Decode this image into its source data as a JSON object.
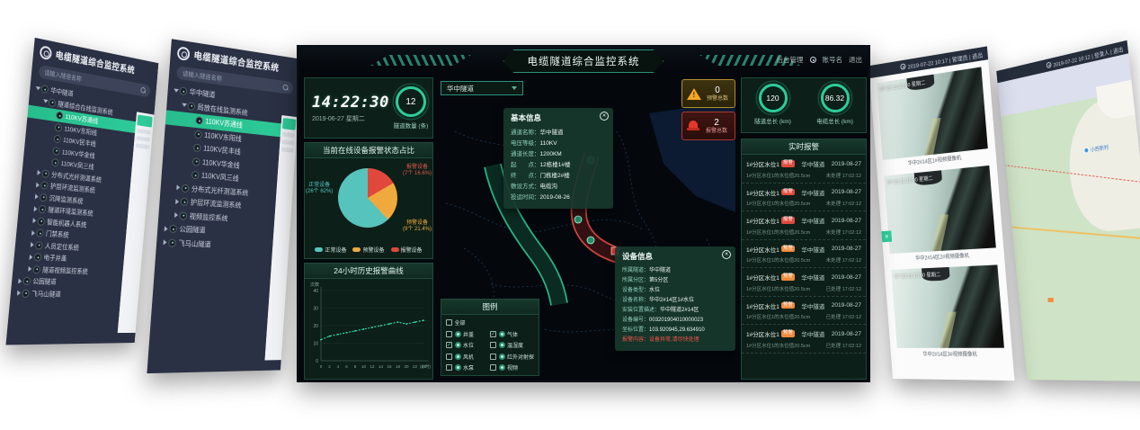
{
  "main": {
    "header": {
      "title": "电缆隧道综合监控系统",
      "link_admin": "后台管理",
      "link_account": "账号名",
      "link_logout": "退出"
    },
    "clock": {
      "time": "14:22:30",
      "date": "2019-06-27 星期二",
      "tunnel_count": "12",
      "tunnel_count_label": "隧道数量 (条)"
    },
    "pie_panel": {
      "title": "当前在线设备报警状态占比",
      "label_normal_name": "正常设备",
      "label_normal_detail": "(26个 62%)",
      "label_warn_name": "预警设备",
      "label_warn_detail": "(9个 21.4%)",
      "label_alarm_name": "报警设备",
      "label_alarm_detail": "(7个 16.6%)"
    },
    "line_panel": {
      "title": "24小时历史报警曲线"
    },
    "map": {
      "dropdown_value": "华中隧道",
      "legend": {
        "title": "图例",
        "items": [
          {
            "label": "全部",
            "checked": false,
            "icon": false,
            "span2": true
          },
          {
            "label": "井盖",
            "checked": false,
            "icon": true
          },
          {
            "label": "气体",
            "checked": true,
            "icon": true
          },
          {
            "label": "水位",
            "checked": true,
            "icon": true
          },
          {
            "label": "温湿度",
            "checked": false,
            "icon": true
          },
          {
            "label": "风机",
            "checked": false,
            "icon": true
          },
          {
            "label": "红外对射探测器",
            "checked": false,
            "icon": true
          },
          {
            "label": "水泵",
            "checked": false,
            "icon": true
          },
          {
            "label": "视频",
            "checked": false,
            "icon": true
          }
        ]
      },
      "basic_info": {
        "title": "基本信息",
        "rows": [
          {
            "label": "通道名称：",
            "value": "华中隧道"
          },
          {
            "label": "电压等级：",
            "value": "110KV"
          },
          {
            "label": "通道长度：",
            "value": "1200KM"
          },
          {
            "label": "起　　点：",
            "value": "12栋楼1#楼"
          },
          {
            "label": "终　　点：",
            "value": "门栋楼2#楼"
          },
          {
            "label": "敷设方式：",
            "value": "电缆沟"
          },
          {
            "label": "投运时间：",
            "value": "2019-08-26"
          }
        ]
      },
      "device_info": {
        "title": "设备信息",
        "rows": [
          {
            "label": "所属隧道：",
            "value": "华中隧道"
          },
          {
            "label": "所属分区：",
            "value": "第5分区"
          },
          {
            "label": "设备类型：",
            "value": "水位"
          },
          {
            "label": "设备名称：",
            "value": "华中2#14区1#水位"
          },
          {
            "label": "安装位置描述：",
            "value": "华中隧道2#14区"
          },
          {
            "label": "设备编号：",
            "value": "003201904010000023"
          },
          {
            "label": "坐标位置：",
            "value": "103.920945,29.634910"
          },
          {
            "label": "报警内容：",
            "value": "设备异常,请尽快处理",
            "alert": true
          }
        ]
      }
    },
    "alarm_summary": {
      "warning_count": "0",
      "warning_label": "预警总数",
      "alarm_count": "2",
      "alarm_label": "报警总数"
    },
    "gauges": [
      {
        "value": "120",
        "label": "隧道总长 (km)"
      },
      {
        "value": "86.32",
        "label": "电缆总长 (km)"
      }
    ],
    "realtime": {
      "title": "实时报警",
      "rows": [
        {
          "name": "1#分区水位1",
          "badge": "报警",
          "type": "alert",
          "tunnel": "华中隧道",
          "date": "2019-08-27",
          "desc": "1#分区水位1的水位值20.5cm",
          "status": "未处理",
          "time": "17:02:12"
        },
        {
          "name": "1#分区水位1",
          "badge": "报警",
          "type": "alert",
          "tunnel": "华中隧道",
          "date": "2019-08-27",
          "desc": "1#分区水位1的水位值20.5cm",
          "status": "未处理",
          "time": "17:02:12"
        },
        {
          "name": "1#分区水位1",
          "badge": "报警",
          "type": "alert",
          "tunnel": "华中隧道",
          "date": "2019-08-27",
          "desc": "1#分区水位1的水位值20.5cm",
          "status": "未处理",
          "time": "17:02:12"
        },
        {
          "name": "1#分区水位1",
          "badge": "预警",
          "type": "warn",
          "tunnel": "华中隧道",
          "date": "2019-08-27",
          "desc": "1#分区水位1的水位值20.5cm",
          "status": "未处理",
          "time": "17:02:12"
        },
        {
          "name": "1#分区水位1",
          "badge": "预警",
          "type": "warn",
          "tunnel": "华中隧道",
          "date": "2019-08-27",
          "desc": "1#分区水位1的水位值20.5cm",
          "status": "已处理",
          "time": "17:02:12"
        },
        {
          "name": "1#分区水位1",
          "badge": "预警",
          "type": "warn",
          "tunnel": "华中隧道",
          "date": "2019-08-27",
          "desc": "1#分区水位1的水位值20.5cm",
          "status": "已处理",
          "time": "17:02:12"
        },
        {
          "name": "1#分区水位1",
          "badge": "预警",
          "type": "warn",
          "tunnel": "华中隧道",
          "date": "2019-08-27",
          "desc": "1#分区水位1的水位值20.5cm",
          "status": "已处理",
          "time": "17:02:12"
        }
      ]
    }
  },
  "left_screen_1": {
    "title": "电缆隧道综合监控系统",
    "search_placeholder": "请输入隧道名称",
    "tree": [
      {
        "label": "华中隧道",
        "level": 0,
        "state": "expanded"
      },
      {
        "label": "隧道综合在线监测系统",
        "level": 1,
        "state": "expanded"
      },
      {
        "label": "110KV苏通线",
        "level": 2,
        "state": "leaf",
        "selected": true
      },
      {
        "label": "110KV东阳线",
        "level": 2,
        "state": "leaf"
      },
      {
        "label": "110KV民丰线",
        "level": 2,
        "state": "leaf"
      },
      {
        "label": "110KV华金线",
        "level": 2,
        "state": "leaf"
      },
      {
        "label": "110KV凤三线",
        "level": 2,
        "state": "leaf"
      },
      {
        "label": "分布式光纤测温系统",
        "level": 1,
        "state": "collapsed"
      },
      {
        "label": "护层环流监测系统",
        "level": 1,
        "state": "collapsed"
      },
      {
        "label": "沉降监测系统",
        "level": 1,
        "state": "collapsed"
      },
      {
        "label": "隧道环境监测系统",
        "level": 1,
        "state": "collapsed"
      },
      {
        "label": "智能机器人系统",
        "level": 1,
        "state": "collapsed"
      },
      {
        "label": "门禁系统",
        "level": 1,
        "state": "collapsed"
      },
      {
        "label": "人员定位系统",
        "level": 1,
        "state": "collapsed"
      },
      {
        "label": "电子井盖",
        "level": 1,
        "state": "collapsed"
      },
      {
        "label": "隧道视频监控系统",
        "level": 1,
        "state": "collapsed"
      },
      {
        "label": "公园隧道",
        "level": 0,
        "state": "collapsed"
      },
      {
        "label": "飞马山隧道",
        "level": 0,
        "state": "collapsed"
      }
    ]
  },
  "left_screen_2": {
    "title": "电缆隧道综合监控系统",
    "search_placeholder": "请输入隧道名称",
    "tree": [
      {
        "label": "华中隧道",
        "level": 0,
        "state": "expanded"
      },
      {
        "label": "局放在线监测系统",
        "level": 1,
        "state": "expanded"
      },
      {
        "label": "110KV苏通线",
        "level": 2,
        "state": "leaf",
        "selected": true
      },
      {
        "label": "110KV东阳线",
        "level": 2,
        "state": "leaf"
      },
      {
        "label": "110KV民丰线",
        "level": 2,
        "state": "leaf"
      },
      {
        "label": "110KV华金线",
        "level": 2,
        "state": "leaf"
      },
      {
        "label": "110KV凤三线",
        "level": 2,
        "state": "leaf"
      },
      {
        "label": "分布式光纤测温系统",
        "level": 1,
        "state": "collapsed"
      },
      {
        "label": "护层环流监测系统",
        "level": 1,
        "state": "collapsed"
      },
      {
        "label": "视频监控系统",
        "level": 1,
        "state": "collapsed"
      },
      {
        "label": "公园隧道",
        "level": 0,
        "state": "collapsed"
      },
      {
        "label": "飞马山隧道",
        "level": 0,
        "state": "collapsed"
      }
    ]
  },
  "right_screen_1": {
    "topbar": "2019-07-22 10:17 | 管理员 | 退出",
    "cameras": [
      {
        "overlay": "07-23 11:15:00 星期二",
        "caption": "华中2#14区1#视频摄像机"
      },
      {
        "overlay": "07-23 11:15:00 星期二",
        "caption": "华中2#14区2#视频摄像机"
      },
      {
        "overlay": "07-23 11:15:00 星期二",
        "caption": "华中2#14区3#视频摄像机"
      }
    ]
  },
  "right_screen_2": {
    "topbar": "2019-07-22 10:12 | 登录人 | 退出",
    "poi_label": "小西新村"
  },
  "chart_data": [
    {
      "type": "pie",
      "title": "当前在线设备报警状态占比",
      "slices": [
        {
          "label": "报警设备",
          "count": 7,
          "pct": 16.6,
          "color": "#e0483c"
        },
        {
          "label": "预警设备",
          "count": 9,
          "pct": 21.4,
          "color": "#f0a93c"
        },
        {
          "label": "正常设备",
          "count": 26,
          "pct": 62.0,
          "color": "#56c3bc"
        }
      ],
      "legend": [
        {
          "label": "正常设备",
          "color": "#56c3bc"
        },
        {
          "label": "预警设备",
          "color": "#f0a93c"
        },
        {
          "label": "报警设备",
          "color": "#e0483c"
        }
      ],
      "legend_position": "bottom"
    },
    {
      "type": "line",
      "title": "24小时历史报警曲线",
      "ylabel": "次数",
      "x": [
        0,
        2,
        4,
        6,
        8,
        10,
        12,
        14,
        16,
        18,
        20,
        22,
        24
      ],
      "x_unit": "(小时)",
      "values": [
        12,
        14,
        15,
        16,
        17,
        18,
        19,
        20,
        21,
        22,
        21,
        22,
        23
      ],
      "ylim": [
        0,
        40
      ],
      "yticks": [
        0,
        10,
        20,
        30,
        40
      ],
      "grid": true,
      "line_color": "#35e0b0"
    }
  ]
}
